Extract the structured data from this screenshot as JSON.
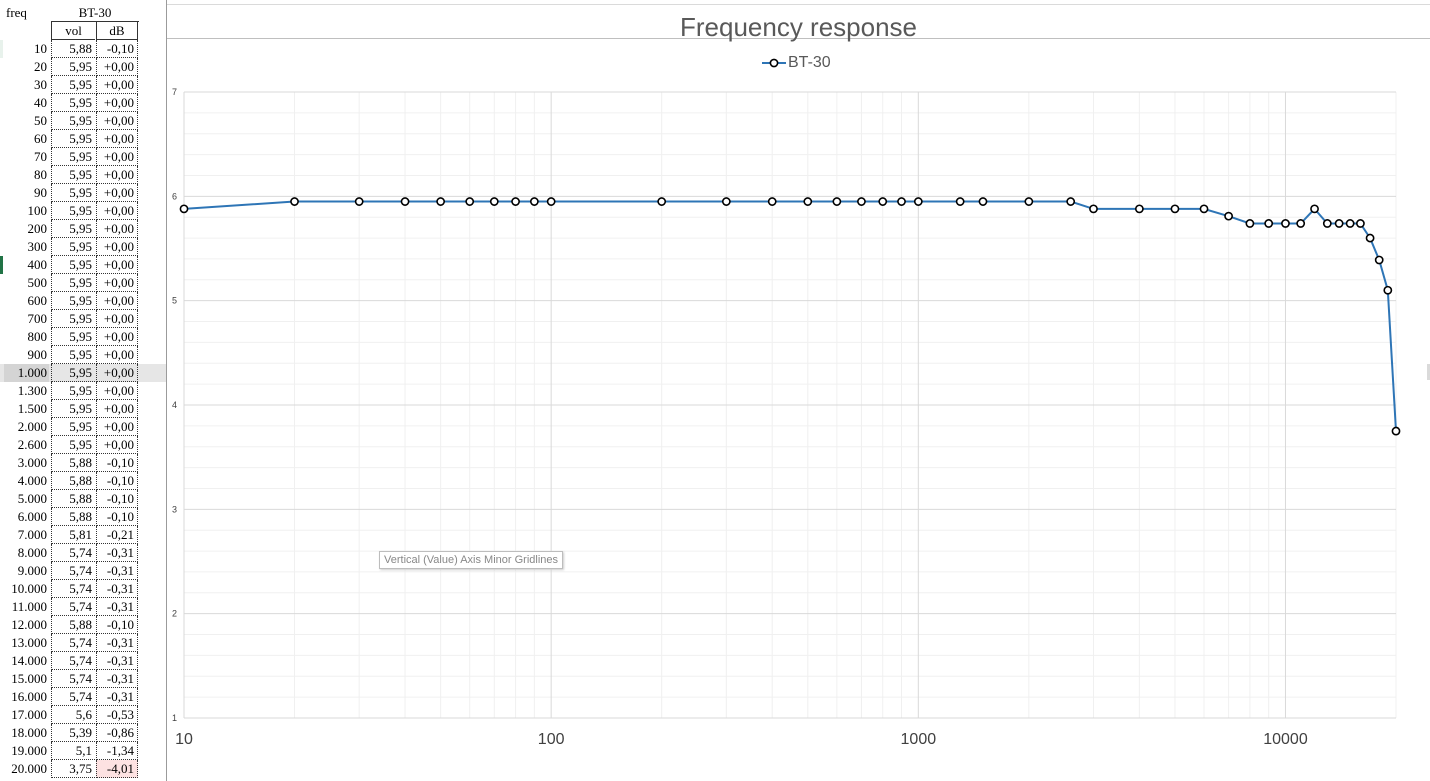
{
  "table": {
    "header_freq": "freq",
    "header_series": "BT-30",
    "header_vol": "vol",
    "header_db": "dB",
    "rows": [
      {
        "freq": "10",
        "vol": "5,88",
        "db": "-0,10"
      },
      {
        "freq": "20",
        "vol": "5,95",
        "db": "+0,00"
      },
      {
        "freq": "30",
        "vol": "5,95",
        "db": "+0,00"
      },
      {
        "freq": "40",
        "vol": "5,95",
        "db": "+0,00"
      },
      {
        "freq": "50",
        "vol": "5,95",
        "db": "+0,00"
      },
      {
        "freq": "60",
        "vol": "5,95",
        "db": "+0,00"
      },
      {
        "freq": "70",
        "vol": "5,95",
        "db": "+0,00"
      },
      {
        "freq": "80",
        "vol": "5,95",
        "db": "+0,00"
      },
      {
        "freq": "90",
        "vol": "5,95",
        "db": "+0,00"
      },
      {
        "freq": "100",
        "vol": "5,95",
        "db": "+0,00"
      },
      {
        "freq": "200",
        "vol": "5,95",
        "db": "+0,00"
      },
      {
        "freq": "300",
        "vol": "5,95",
        "db": "+0,00"
      },
      {
        "freq": "400",
        "vol": "5,95",
        "db": "+0,00"
      },
      {
        "freq": "500",
        "vol": "5,95",
        "db": "+0,00"
      },
      {
        "freq": "600",
        "vol": "5,95",
        "db": "+0,00"
      },
      {
        "freq": "700",
        "vol": "5,95",
        "db": "+0,00"
      },
      {
        "freq": "800",
        "vol": "5,95",
        "db": "+0,00"
      },
      {
        "freq": "900",
        "vol": "5,95",
        "db": "+0,00"
      },
      {
        "freq": "1.000",
        "vol": "5,95",
        "db": "+0,00"
      },
      {
        "freq": "1.300",
        "vol": "5,95",
        "db": "+0,00"
      },
      {
        "freq": "1.500",
        "vol": "5,95",
        "db": "+0,00"
      },
      {
        "freq": "2.000",
        "vol": "5,95",
        "db": "+0,00"
      },
      {
        "freq": "2.600",
        "vol": "5,95",
        "db": "+0,00"
      },
      {
        "freq": "3.000",
        "vol": "5,88",
        "db": "-0,10"
      },
      {
        "freq": "4.000",
        "vol": "5,88",
        "db": "-0,10"
      },
      {
        "freq": "5.000",
        "vol": "5,88",
        "db": "-0,10"
      },
      {
        "freq": "6.000",
        "vol": "5,88",
        "db": "-0,10"
      },
      {
        "freq": "7.000",
        "vol": "5,81",
        "db": "-0,21"
      },
      {
        "freq": "8.000",
        "vol": "5,74",
        "db": "-0,31"
      },
      {
        "freq": "9.000",
        "vol": "5,74",
        "db": "-0,31"
      },
      {
        "freq": "10.000",
        "vol": "5,74",
        "db": "-0,31"
      },
      {
        "freq": "11.000",
        "vol": "5,74",
        "db": "-0,31"
      },
      {
        "freq": "12.000",
        "vol": "5,88",
        "db": "-0,10"
      },
      {
        "freq": "13.000",
        "vol": "5,74",
        "db": "-0,31"
      },
      {
        "freq": "14.000",
        "vol": "5,74",
        "db": "-0,31"
      },
      {
        "freq": "15.000",
        "vol": "5,74",
        "db": "-0,31"
      },
      {
        "freq": "16.000",
        "vol": "5,74",
        "db": "-0,31"
      },
      {
        "freq": "17.000",
        "vol": "5,6",
        "db": "-0,53"
      },
      {
        "freq": "18.000",
        "vol": "5,39",
        "db": "-0,86"
      },
      {
        "freq": "19.000",
        "vol": "5,1",
        "db": "-1,34"
      },
      {
        "freq": "20.000",
        "vol": "3,75",
        "db": "-4,01"
      }
    ],
    "selected_row_index": 18,
    "highlight_row_index": 40
  },
  "tooltip_text": "Vertical (Value) Axis Minor Gridlines",
  "colors": {
    "series_line": "#2e75b6",
    "marker_stroke": "#000000",
    "title_text": "#595959",
    "axis_text": "#404040",
    "major_grid": "#d9d9d9",
    "minor_grid": "#f0f0f0",
    "negative_fill": "#fde2e2",
    "selected_fill": "#e6e6e6"
  },
  "chart_data": {
    "type": "line",
    "title": "Frequency response",
    "legend": "top-center",
    "x_scale": "log",
    "xlim": [
      10,
      20000
    ],
    "ylim": [
      1,
      7
    ],
    "x_ticks": [
      "10",
      "100",
      "1000",
      "10000"
    ],
    "y_ticks": [
      "1",
      "2",
      "3",
      "4",
      "5",
      "6",
      "7"
    ],
    "grid": "major and minor",
    "series": [
      {
        "name": "BT-30",
        "x": [
          10,
          20,
          30,
          40,
          50,
          60,
          70,
          80,
          90,
          100,
          200,
          300,
          400,
          500,
          600,
          700,
          800,
          900,
          1000,
          1300,
          1500,
          2000,
          2600,
          3000,
          4000,
          5000,
          6000,
          7000,
          8000,
          9000,
          10000,
          11000,
          12000,
          13000,
          14000,
          15000,
          16000,
          17000,
          18000,
          19000,
          20000
        ],
        "y": [
          5.88,
          5.95,
          5.95,
          5.95,
          5.95,
          5.95,
          5.95,
          5.95,
          5.95,
          5.95,
          5.95,
          5.95,
          5.95,
          5.95,
          5.95,
          5.95,
          5.95,
          5.95,
          5.95,
          5.95,
          5.95,
          5.95,
          5.95,
          5.88,
          5.88,
          5.88,
          5.88,
          5.81,
          5.74,
          5.74,
          5.74,
          5.74,
          5.88,
          5.74,
          5.74,
          5.74,
          5.74,
          5.6,
          5.39,
          5.1,
          3.75
        ]
      }
    ]
  }
}
